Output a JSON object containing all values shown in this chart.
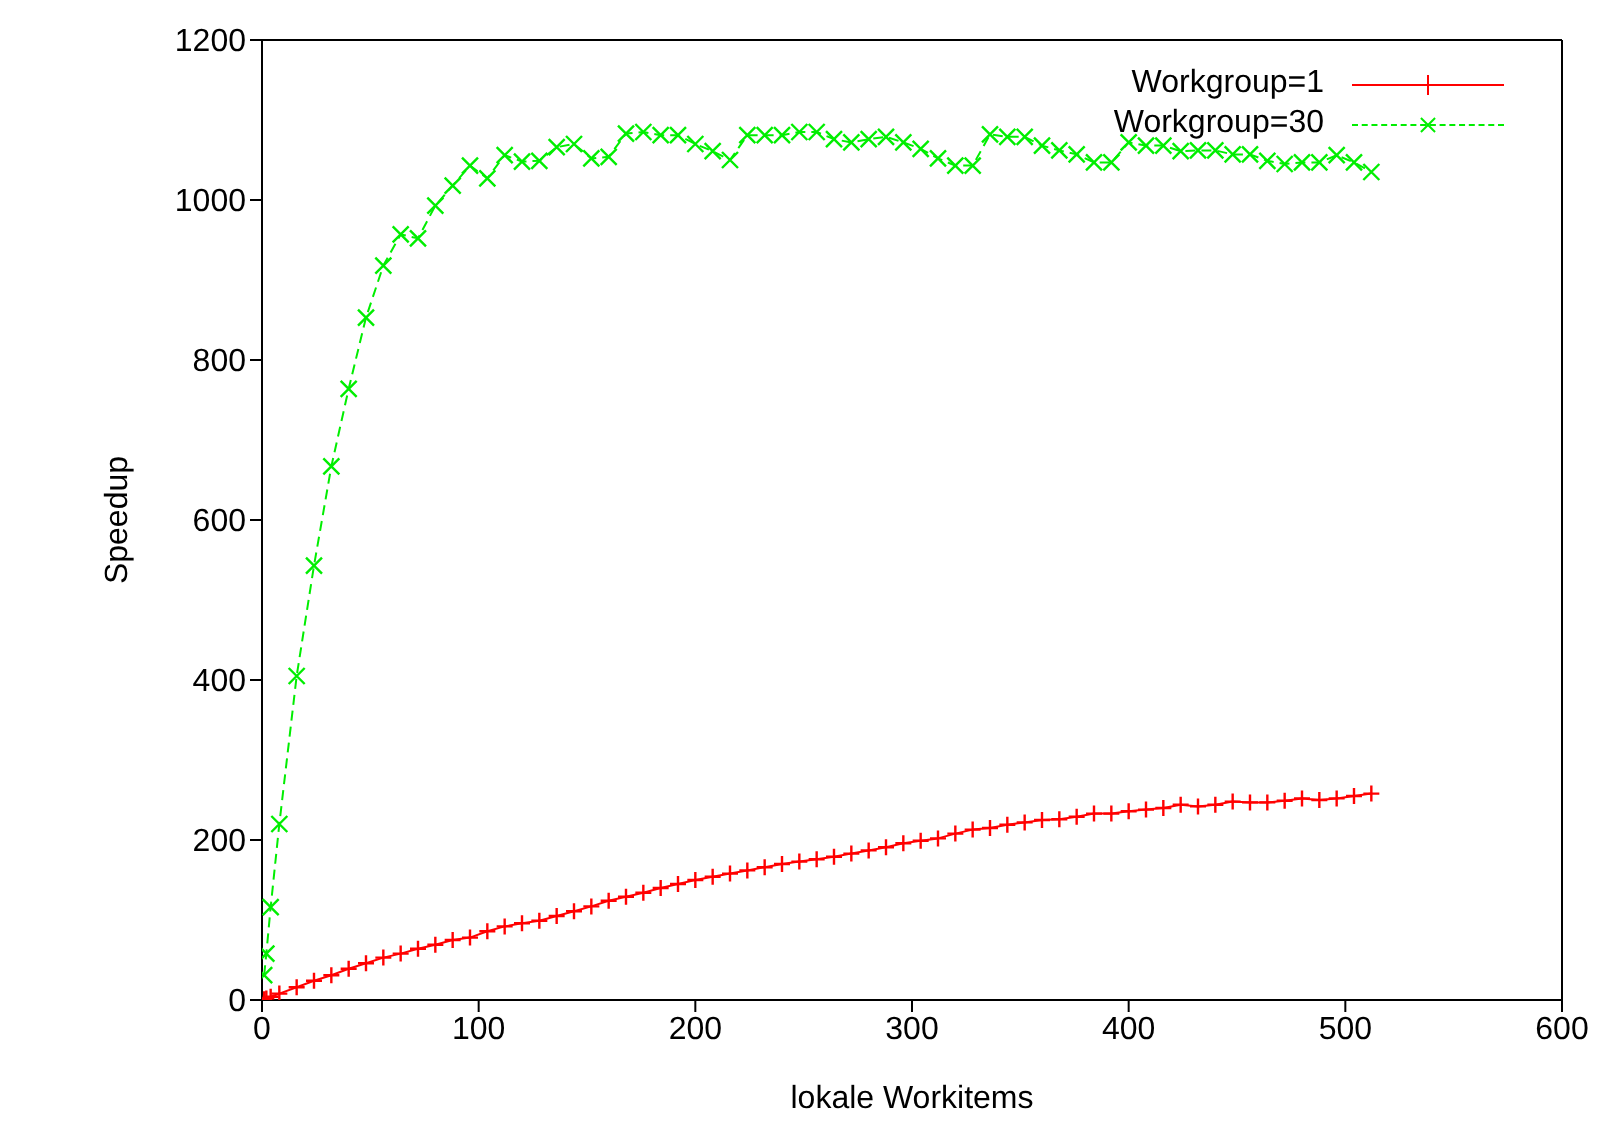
{
  "chart_data": {
    "type": "line",
    "xlabel": "lokale Workitems",
    "ylabel": "Speedup",
    "x": [
      1,
      2,
      4,
      8,
      16,
      24,
      32,
      40,
      48,
      56,
      64,
      72,
      80,
      88,
      96,
      104,
      112,
      120,
      128,
      136,
      144,
      152,
      160,
      168,
      176,
      184,
      192,
      200,
      208,
      216,
      224,
      232,
      240,
      248,
      256,
      264,
      272,
      280,
      288,
      296,
      304,
      312,
      320,
      328,
      336,
      344,
      352,
      360,
      368,
      376,
      384,
      392,
      400,
      408,
      416,
      424,
      432,
      440,
      448,
      456,
      464,
      472,
      480,
      488,
      496,
      504,
      512
    ],
    "series": [
      {
        "name": "Workgroup=1",
        "color": "#ff0000",
        "marker": "plus",
        "line_style": "solid",
        "values": [
          1,
          2,
          4,
          8,
          16,
          24,
          31,
          39,
          46,
          53,
          58,
          64,
          69,
          75,
          78,
          86,
          92,
          96,
          99,
          105,
          111,
          117,
          124,
          129,
          134,
          140,
          145,
          150,
          154,
          158,
          162,
          166,
          170,
          173,
          176,
          179,
          183,
          187,
          191,
          196,
          199,
          202,
          208,
          213,
          215,
          219,
          222,
          225,
          226,
          229,
          233,
          233,
          236,
          238,
          240,
          244,
          242,
          244,
          248,
          247,
          247,
          249,
          252,
          250,
          252,
          255,
          258
        ]
      },
      {
        "name": "Workgroup=30",
        "color": "#00ee00",
        "marker": "cross",
        "line_style": "dashed",
        "values": [
          31,
          58,
          116,
          220,
          405,
          543,
          667,
          764,
          853,
          918,
          957,
          952,
          993,
          1018,
          1043,
          1027,
          1056,
          1048,
          1049,
          1066,
          1070,
          1052,
          1054,
          1083,
          1085,
          1081,
          1081,
          1070,
          1061,
          1050,
          1081,
          1081,
          1081,
          1085,
          1085,
          1076,
          1072,
          1076,
          1079,
          1072,
          1064,
          1052,
          1043,
          1043,
          1082,
          1079,
          1079,
          1068,
          1062,
          1057,
          1047,
          1047,
          1072,
          1068,
          1068,
          1061,
          1062,
          1062,
          1057,
          1057,
          1049,
          1045,
          1047,
          1047,
          1056,
          1047,
          1035
        ]
      }
    ],
    "xlim": [
      0,
      600
    ],
    "xticks": [
      0,
      100,
      200,
      300,
      400,
      500,
      600
    ],
    "ylim": [
      0,
      1200
    ],
    "yticks": [
      0,
      200,
      400,
      600,
      800,
      1000,
      1200
    ],
    "grid": false,
    "legend": "top right"
  }
}
